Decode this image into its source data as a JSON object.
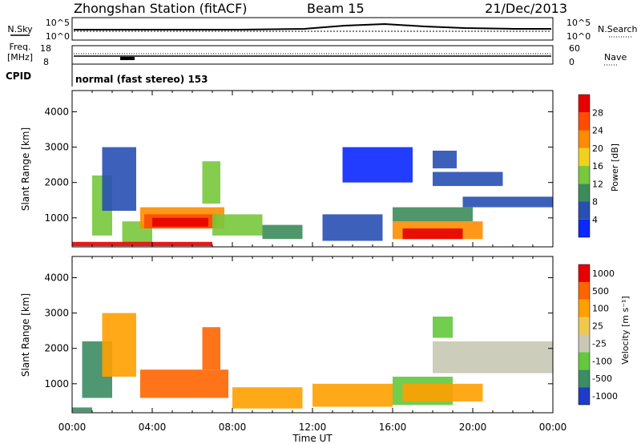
{
  "header": {
    "station": "Zhongshan Station (fitACF)",
    "beam": "Beam 15",
    "date": "21/Dec/2013"
  },
  "noise_panel": {
    "left_label": "N.Sky",
    "right_label": "N.Search",
    "left_ticks": [
      "10^5",
      "10^0"
    ],
    "right_ticks": [
      "10^5",
      "10^0"
    ]
  },
  "freq_panel": {
    "left_label_line1": "Freq.",
    "left_label_line2": "[MHz]",
    "right_label": "Nave",
    "left_ticks": [
      "18",
      "8"
    ],
    "right_ticks": [
      "60",
      "0"
    ]
  },
  "cpid": {
    "label": "CPID",
    "text": "normal (fast stereo) 153"
  },
  "x_axis": {
    "label": "Time UT",
    "ticks": [
      "00:00",
      "04:00",
      "08:00",
      "12:00",
      "16:00",
      "20:00",
      "00:00"
    ]
  },
  "chart_data": [
    {
      "type": "heatmap",
      "name": "Power",
      "ylabel": "Slant Range [km]",
      "yticks": [
        "1000",
        "2000",
        "3000",
        "4000"
      ],
      "ylim": [
        180,
        4600
      ],
      "xlim": [
        0,
        24
      ],
      "colorbar": {
        "label": "Power [dB]",
        "tick_labels": [
          "4",
          "8",
          "12",
          "16",
          "20",
          "24",
          "28"
        ],
        "colors": [
          "#0a28ff",
          "#2850b4",
          "#3c8c5a",
          "#78c83c",
          "#f0d21e",
          "#ff8c00",
          "#ff4b00",
          "#e60000"
        ]
      },
      "regions": [
        {
          "t0": 1.0,
          "t1": 2.0,
          "r0": 500,
          "r1": 2200,
          "v": 3
        },
        {
          "t0": 1.5,
          "t1": 3.2,
          "r0": 1200,
          "r1": 3000,
          "v": 1
        },
        {
          "t0": 2.5,
          "t1": 4.0,
          "r0": 300,
          "r1": 900,
          "v": 3
        },
        {
          "t0": 3.4,
          "t1": 7.6,
          "r0": 700,
          "r1": 1300,
          "v": 5
        },
        {
          "t0": 3.6,
          "t1": 7.2,
          "r0": 700,
          "r1": 1100,
          "v": 6
        },
        {
          "t0": 4.0,
          "t1": 6.8,
          "r0": 750,
          "r1": 1000,
          "v": 7
        },
        {
          "t0": 6.5,
          "t1": 7.4,
          "r0": 1400,
          "r1": 2600,
          "v": 3
        },
        {
          "t0": 7.0,
          "t1": 9.5,
          "r0": 500,
          "r1": 1100,
          "v": 3
        },
        {
          "t0": 0.0,
          "t1": 7.0,
          "r0": 200,
          "r1": 320,
          "v": 7
        },
        {
          "t0": 9.5,
          "t1": 11.5,
          "r0": 400,
          "r1": 800,
          "v": 2
        },
        {
          "t0": 12.5,
          "t1": 15.5,
          "r0": 350,
          "r1": 1100,
          "v": 1
        },
        {
          "t0": 16.0,
          "t1": 20.5,
          "r0": 400,
          "r1": 900,
          "v": 5
        },
        {
          "t0": 16.5,
          "t1": 19.5,
          "r0": 400,
          "r1": 700,
          "v": 7
        },
        {
          "t0": 16.0,
          "t1": 20.0,
          "r0": 900,
          "r1": 1300,
          "v": 2
        },
        {
          "t0": 19.5,
          "t1": 24.0,
          "r0": 1300,
          "r1": 1600,
          "v": 1
        },
        {
          "t0": 18.0,
          "t1": 19.2,
          "r0": 2400,
          "r1": 2900,
          "v": 1
        },
        {
          "t0": 18.0,
          "t1": 21.5,
          "r0": 1900,
          "r1": 2300,
          "v": 1
        },
        {
          "t0": 13.5,
          "t1": 17.0,
          "r0": 2000,
          "r1": 3000,
          "v": 0
        }
      ]
    },
    {
      "type": "heatmap",
      "name": "Velocity",
      "ylabel": "Slant Range [km]",
      "yticks": [
        "1000",
        "2000",
        "3000",
        "4000"
      ],
      "ylim": [
        180,
        4600
      ],
      "xlim": [
        0,
        24
      ],
      "colorbar": {
        "label": "Velocity [m s⁻¹]",
        "tick_labels": [
          "1000",
          "500",
          "100",
          "25",
          "-25",
          "-100",
          "-500",
          "-1000"
        ],
        "colors": [
          "#1e3cc8",
          "#3c8c64",
          "#64c83c",
          "#c8c8b4",
          "#f0c850",
          "#ffa000",
          "#ff6400",
          "#e60000"
        ]
      },
      "regions": [
        {
          "t0": 0.5,
          "t1": 2.0,
          "r0": 600,
          "r1": 2200,
          "v": 1
        },
        {
          "t0": 1.5,
          "t1": 3.2,
          "r0": 1200,
          "r1": 3000,
          "v": 5
        },
        {
          "t0": 3.4,
          "t1": 7.8,
          "r0": 600,
          "r1": 1400,
          "v": 6
        },
        {
          "t0": 6.5,
          "t1": 7.4,
          "r0": 1400,
          "r1": 2600,
          "v": 6
        },
        {
          "t0": 8.0,
          "t1": 11.5,
          "r0": 300,
          "r1": 900,
          "v": 5
        },
        {
          "t0": 0.0,
          "t1": 1.0,
          "r0": 200,
          "r1": 330,
          "v": 1
        },
        {
          "t0": 12.0,
          "t1": 16.0,
          "r0": 350,
          "r1": 1000,
          "v": 5
        },
        {
          "t0": 16.0,
          "t1": 19.0,
          "r0": 400,
          "r1": 1200,
          "v": 2
        },
        {
          "t0": 16.5,
          "t1": 20.5,
          "r0": 500,
          "r1": 1000,
          "v": 5
        },
        {
          "t0": 18.0,
          "t1": 24.0,
          "r0": 1300,
          "r1": 2200,
          "v": 3
        },
        {
          "t0": 18.0,
          "t1": 19.0,
          "r0": 2300,
          "r1": 2900,
          "v": 2
        }
      ]
    }
  ]
}
